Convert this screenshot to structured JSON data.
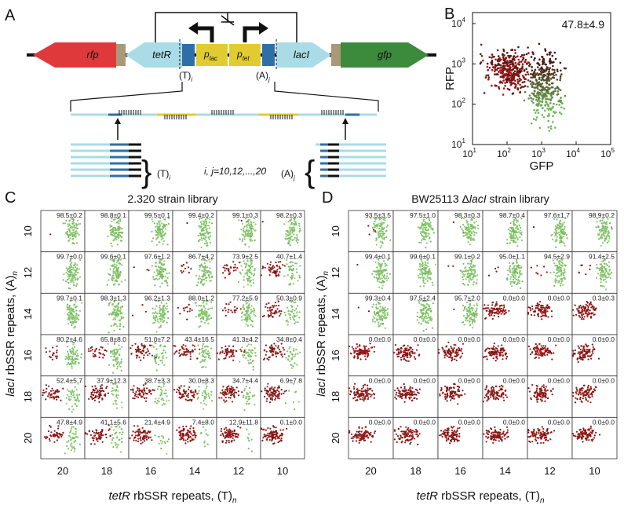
{
  "panel_a": {
    "letter": "A",
    "genes": {
      "rfp": "rfp",
      "tetR": "tetR",
      "lacI": "lacI",
      "gfp": "gfp"
    },
    "promoters": [
      {
        "p": "p",
        "sub": "lac"
      },
      {
        "p": "p",
        "sub": "tet"
      }
    ],
    "repeat_left": {
      "text": "(T)",
      "sub": "i"
    },
    "repeat_right": {
      "text": "(A)",
      "sub": "j"
    },
    "library_left": {
      "text": "(T)",
      "sub": "i"
    },
    "library_right": {
      "text": "(A)",
      "sub": "j"
    },
    "index_note": "i, j=10,12,...,20"
  },
  "panel_b": {
    "letter": "B",
    "annotation": "47.8±4.9",
    "xlabel": "GFP",
    "ylabel": "RFP",
    "xticks": [
      {
        "base": "10",
        "exp": "1"
      },
      {
        "base": "10",
        "exp": "2"
      },
      {
        "base": "10",
        "exp": "3"
      },
      {
        "base": "10",
        "exp": "4"
      },
      {
        "base": "10",
        "exp": "5"
      }
    ],
    "yticks": [
      {
        "base": "10",
        "exp": "1"
      },
      {
        "base": "10",
        "exp": "2"
      },
      {
        "base": "10",
        "exp": "3"
      },
      {
        "base": "10",
        "exp": "4"
      }
    ]
  },
  "panel_c": {
    "letter": "C",
    "title": "2.320  strain library",
    "ylabel": {
      "gene": "lacI",
      "text": " rbSSR repeats, (A)",
      "sub": "n"
    },
    "xlabel": {
      "gene": "tetR",
      "text": " rbSSR repeats, (T)",
      "sub": "n"
    },
    "rows": [
      "10",
      "12",
      "14",
      "16",
      "18",
      "20"
    ],
    "cols": [
      "20",
      "18",
      "16",
      "14",
      "12",
      "10"
    ],
    "cells": [
      [
        "98.5±0.2",
        "98.8±0.1",
        "99.5±0.1",
        "99.4±0.2",
        "99.1±0.3",
        "98.2±0.3"
      ],
      [
        "99.7±0.0",
        "99.6±0.1",
        "97.6±1.2",
        "86.7±4.2",
        "73.9±2.5",
        "40.7±1.4"
      ],
      [
        "99.7±0.1",
        "98.3±1.3",
        "96.2±1.3",
        "88.0±1.2",
        "77.2±5.9",
        "50.3±0.9"
      ],
      [
        "80.2±4.6",
        "65.8±8.0",
        "51.0±7.2",
        "43.4±16.5",
        "41.3±4.2",
        "34.8±0.4"
      ],
      [
        "52.4±5.7",
        "37.9±12.3",
        "38.7±3.3",
        "30.0±8.3",
        "34.7±4.4",
        "6.9±7.8"
      ],
      [
        "47.8±4.9",
        "41.1±5.6",
        "21.4±4.9",
        "7.4±8.0",
        "12.9±11.8",
        "0.1±0.0"
      ]
    ]
  },
  "panel_d": {
    "letter": "D",
    "title": {
      "prefix": "BW25113 Δ",
      "gene": "lacI",
      "suffix": " strain library"
    },
    "ylabel": {
      "gene": "lacI",
      "text": " rbSSR repeats, (A)",
      "sub": "n"
    },
    "xlabel": {
      "gene": "tetR",
      "text": " rbSSR repeats, (T)",
      "sub": "n"
    },
    "rows": [
      "10",
      "12",
      "14",
      "16",
      "18",
      "20"
    ],
    "cols": [
      "20",
      "18",
      "16",
      "14",
      "12",
      "10"
    ],
    "cells": [
      [
        "93.5±3.5",
        "97.5±1.0",
        "98.3±0.3",
        "98.7±0.4",
        "97.6±1.7",
        "98.9±0.2"
      ],
      [
        "99.4±0.1",
        "99.6±0.1",
        "99.1±0.2",
        "95.0±1.1",
        "94.5±2.9",
        "91.4±2.5"
      ],
      [
        "99.3±0.4",
        "97.5±2.4",
        "95.7±2.0",
        "0.0±0.0",
        "0.0±0.0",
        "0.3±0.3"
      ],
      [
        "0.0±0.0",
        "0.0±0.0",
        "0.0±0.0",
        "0.0±0.0",
        "0.0±0.0",
        "0.0±0.0"
      ],
      [
        "0.0±0.0",
        "0.0±0.0",
        "0.0±0.0",
        "0.0±0.0",
        "0.0±0.0",
        "0.0±0.0"
      ],
      [
        "0.0±0.0",
        "0.0±0.0",
        "0.0±0.0",
        "0.0±0.0",
        "0.0±0.0",
        "0.0±0.0"
      ]
    ]
  }
}
